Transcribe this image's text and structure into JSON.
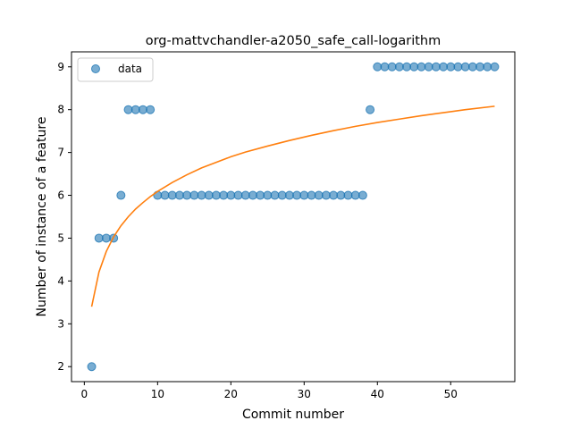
{
  "chart_data": {
    "type": "scatter",
    "title": "org-mattvchandler-a2050_safe_call-logarithm",
    "xlabel": "Commit number",
    "ylabel": "Number of instance of a feature",
    "xlim": [
      -1.75,
      58.75
    ],
    "ylim": [
      1.65,
      9.35
    ],
    "x_ticks": [
      0,
      10,
      20,
      30,
      40,
      50
    ],
    "y_ticks": [
      2,
      3,
      4,
      5,
      6,
      7,
      8,
      9
    ],
    "grid": false,
    "legend": {
      "position": "upper-left",
      "entries": [
        "data"
      ]
    },
    "series": [
      {
        "name": "data",
        "kind": "scatter",
        "color": "#1f77b4",
        "x": [
          1,
          2,
          3,
          4,
          5,
          6,
          7,
          8,
          9,
          10,
          11,
          12,
          13,
          14,
          15,
          16,
          17,
          18,
          19,
          20,
          21,
          22,
          23,
          24,
          25,
          26,
          27,
          28,
          29,
          30,
          31,
          32,
          33,
          34,
          35,
          36,
          37,
          38,
          39,
          40,
          41,
          42,
          43,
          44,
          45,
          46,
          47,
          48,
          49,
          50,
          51,
          52,
          53,
          54,
          55,
          56
        ],
        "y": [
          2,
          5,
          5,
          5,
          6,
          8,
          8,
          8,
          8,
          6,
          6,
          6,
          6,
          6,
          6,
          6,
          6,
          6,
          6,
          6,
          6,
          6,
          6,
          6,
          6,
          6,
          6,
          6,
          6,
          6,
          6,
          6,
          6,
          6,
          6,
          6,
          6,
          6,
          8,
          9,
          9,
          9,
          9,
          9,
          9,
          9,
          9,
          9,
          9,
          9,
          9,
          9,
          9,
          9,
          9,
          9
        ]
      },
      {
        "kind": "line",
        "color": "#ff7f0e",
        "x": [
          1,
          2,
          3,
          4,
          5,
          6,
          7,
          8,
          9,
          10,
          12,
          14,
          16,
          18,
          20,
          22,
          25,
          28,
          31,
          34,
          37,
          40,
          43,
          46,
          49,
          52,
          56
        ],
        "y": [
          3.4,
          4.21,
          4.69,
          5.03,
          5.29,
          5.5,
          5.68,
          5.83,
          5.97,
          6.09,
          6.3,
          6.48,
          6.64,
          6.77,
          6.9,
          7.01,
          7.15,
          7.28,
          7.4,
          7.51,
          7.61,
          7.7,
          7.78,
          7.86,
          7.93,
          8.0,
          8.08
        ]
      }
    ]
  }
}
